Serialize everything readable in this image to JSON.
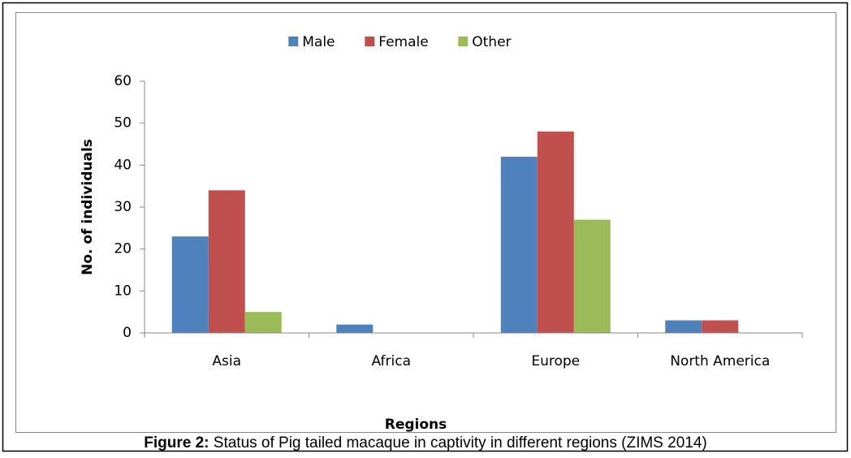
{
  "chart_data": {
    "type": "bar",
    "categories": [
      "Asia",
      "Africa",
      "Europe",
      "North America"
    ],
    "series": [
      {
        "name": "Male",
        "color": "#4f81bd",
        "values": [
          23,
          2,
          42,
          3
        ]
      },
      {
        "name": "Female",
        "color": "#c0504d",
        "values": [
          34,
          0,
          48,
          3
        ]
      },
      {
        "name": "Other",
        "color": "#9bbb59",
        "values": [
          5,
          0,
          27,
          0
        ]
      }
    ],
    "ylim": [
      0,
      60
    ],
    "yticks": [
      0,
      10,
      20,
      30,
      40,
      50,
      60
    ],
    "x_label": "Regions",
    "y_label": "No. of individuals",
    "legend": "top",
    "grid": false
  },
  "caption": {
    "label": "Figure 2:",
    "text": "Status of Pig tailed macaque in captivity in different regions (ZIMS 2014)"
  }
}
